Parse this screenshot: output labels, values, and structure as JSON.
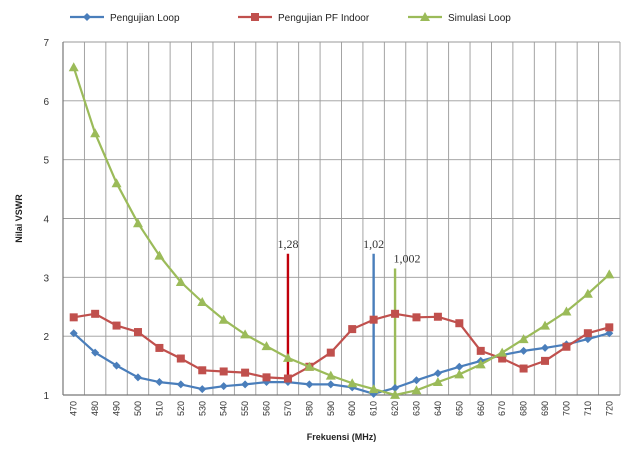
{
  "chart_data": {
    "type": "line",
    "xlabel": "Frekuensi (MHz)",
    "ylabel": "Nilai VSWR",
    "ylim": [
      1,
      7
    ],
    "yticks": [
      1,
      2,
      3,
      4,
      5,
      6,
      7
    ],
    "grid": true,
    "legend_position": "top",
    "categories": [
      470,
      480,
      490,
      500,
      510,
      520,
      530,
      540,
      550,
      560,
      570,
      580,
      590,
      600,
      610,
      620,
      630,
      640,
      650,
      660,
      670,
      680,
      690,
      700,
      710,
      720
    ],
    "series": [
      {
        "name": "Pengujian Loop",
        "color": "#4a7ebb",
        "marker": "diamond",
        "values": [
          2.05,
          1.72,
          1.5,
          1.3,
          1.22,
          1.18,
          1.1,
          1.15,
          1.18,
          1.22,
          1.22,
          1.18,
          1.18,
          1.13,
          1.02,
          1.12,
          1.25,
          1.37,
          1.48,
          1.58,
          1.68,
          1.75,
          1.8,
          1.86,
          1.95,
          2.05
        ]
      },
      {
        "name": "Pengujian PF Indoor",
        "color": "#c0504d",
        "marker": "square",
        "values": [
          2.32,
          2.38,
          2.18,
          2.07,
          1.8,
          1.62,
          1.42,
          1.4,
          1.38,
          1.3,
          1.28,
          1.48,
          1.72,
          2.12,
          2.28,
          2.38,
          2.32,
          2.33,
          2.22,
          1.75,
          1.62,
          1.45,
          1.58,
          1.82,
          2.05,
          2.15
        ]
      },
      {
        "name": "Simulasi Loop",
        "color": "#9bbb59",
        "marker": "triangle",
        "values": [
          6.57,
          5.45,
          4.6,
          3.92,
          3.37,
          2.92,
          2.58,
          2.28,
          2.03,
          1.83,
          1.63,
          1.48,
          1.33,
          1.2,
          1.1,
          1.002,
          1.08,
          1.22,
          1.35,
          1.52,
          1.72,
          1.95,
          2.18,
          2.42,
          2.72,
          3.05
        ]
      }
    ],
    "annotations": [
      {
        "text": "1,28",
        "x": 570,
        "y_top": 3.4,
        "y_bottom": 1.28,
        "color": "#c0000b"
      },
      {
        "text": "1,02",
        "x": 610,
        "y_top": 3.4,
        "y_bottom": 1.02,
        "color": "#4a7ebb"
      },
      {
        "text": "1,002",
        "x": 620,
        "y_top": 3.15,
        "y_bottom": 1.002,
        "color": "#9bbb59"
      }
    ]
  }
}
